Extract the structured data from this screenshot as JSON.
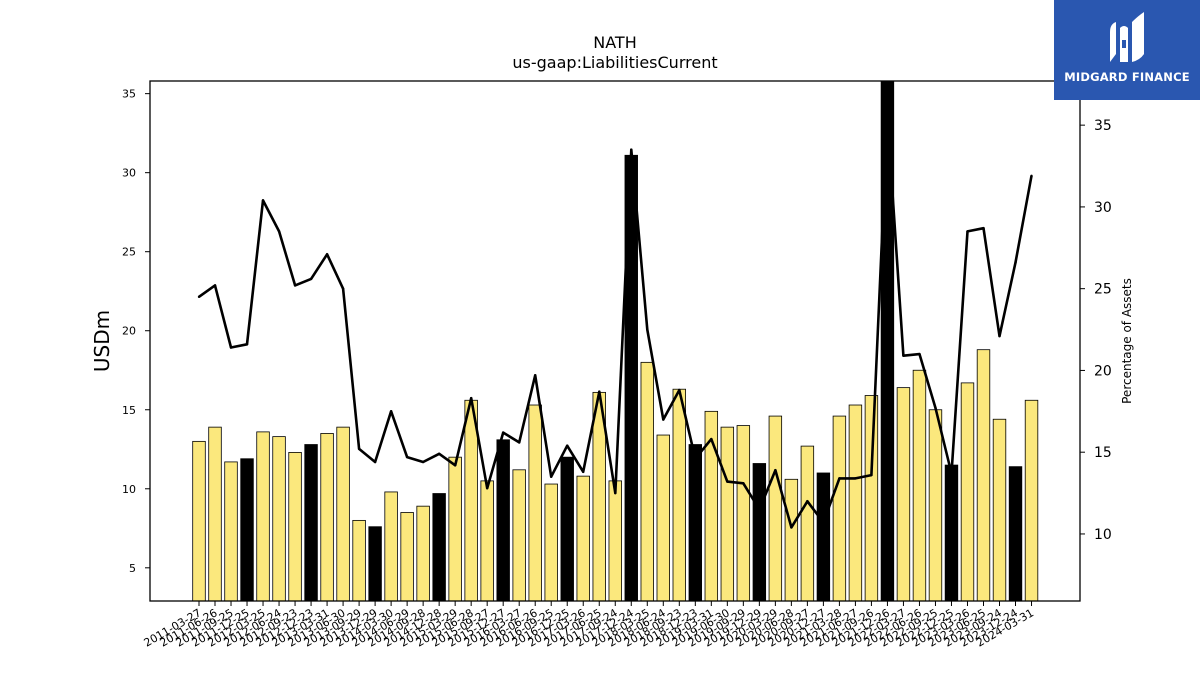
{
  "chart_data": {
    "type": "bar+line",
    "title": "NATH",
    "subtitle": "us-gaap:LiabilitiesCurrent",
    "ylabel": "USDm",
    "y2label": "Percentage of Assets",
    "ylim": [
      2.9,
      35.8
    ],
    "y2lim": [
      5.9,
      37.7
    ],
    "yticks": [
      5,
      10,
      15,
      20,
      25,
      30,
      35
    ],
    "y2ticks": [
      10,
      15,
      20,
      25,
      30,
      35
    ],
    "colors": {
      "bar_default": "#fbe87d",
      "bar_highlight": "#000000",
      "line": "#000000"
    },
    "categories": [
      "2011-03-27",
      "2011-06-26",
      "2011-09-25",
      "2011-12-25",
      "2012-03-25",
      "2012-06-24",
      "2012-09-23",
      "2012-12-23",
      "2013-03-31",
      "2013-06-30",
      "2013-09-29",
      "2013-12-29",
      "2014-03-30",
      "2014-06-29",
      "2014-09-28",
      "2014-12-28",
      "2015-03-29",
      "2015-06-28",
      "2015-09-27",
      "2015-12-27",
      "2016-03-27",
      "2016-06-26",
      "2016-09-25",
      "2016-12-25",
      "2017-03-26",
      "2017-06-25",
      "2017-09-24",
      "2017-12-24",
      "2018-03-25",
      "2018-06-24",
      "2018-09-23",
      "2018-12-23",
      "2019-03-31",
      "2019-06-30",
      "2019-09-29",
      "2019-12-29",
      "2020-03-29",
      "2020-06-28",
      "2020-09-27",
      "2020-12-27",
      "2021-03-28",
      "2021-06-27",
      "2021-09-26",
      "2021-12-26",
      "2022-03-27",
      "2022-06-26",
      "2022-09-25",
      "2022-12-25",
      "2023-03-26",
      "2023-06-25",
      "2023-09-24",
      "2023-12-24",
      "2024-03-31"
    ],
    "series": [
      {
        "type": "bar",
        "axis": "left",
        "values": [
          13.0,
          13.9,
          11.7,
          11.9,
          13.6,
          13.3,
          12.3,
          12.8,
          13.5,
          13.9,
          8.0,
          7.6,
          9.8,
          8.5,
          8.9,
          9.7,
          12.0,
          15.6,
          10.5,
          13.1,
          11.2,
          15.3,
          10.3,
          12.0,
          10.8,
          16.1,
          10.5,
          31.1,
          18.0,
          13.4,
          16.3,
          12.8,
          14.9,
          13.9,
          14.0,
          11.6,
          14.6,
          10.6,
          12.7,
          11.0,
          14.6,
          15.3,
          15.9,
          35.8,
          16.4,
          17.5,
          15.0,
          11.5,
          16.7,
          18.8,
          14.4,
          11.4,
          15.6
        ],
        "highlight": [
          false,
          false,
          false,
          true,
          false,
          false,
          false,
          true,
          false,
          false,
          false,
          true,
          false,
          false,
          false,
          true,
          false,
          false,
          false,
          true,
          false,
          false,
          false,
          true,
          false,
          false,
          false,
          true,
          false,
          false,
          false,
          true,
          false,
          false,
          false,
          true,
          false,
          false,
          false,
          true,
          false,
          false,
          false,
          true,
          false,
          false,
          false,
          true,
          false,
          false,
          false,
          true,
          false
        ]
      },
      {
        "type": "line",
        "axis": "right",
        "values": [
          24.5,
          25.2,
          21.4,
          21.6,
          30.4,
          28.5,
          25.2,
          25.6,
          27.1,
          25.0,
          15.2,
          14.4,
          17.5,
          14.7,
          14.4,
          14.9,
          14.2,
          18.3,
          12.8,
          16.2,
          15.6,
          19.7,
          13.5,
          15.4,
          13.8,
          18.7,
          12.5,
          33.5,
          22.5,
          17.0,
          18.8,
          14.6,
          15.8,
          13.2,
          13.1,
          11.5,
          13.9,
          10.4,
          12.0,
          10.7,
          13.4,
          13.4,
          13.6,
          35.5,
          20.9,
          21.0,
          17.7,
          13.7,
          28.5,
          28.7,
          22.1,
          26.6,
          31.9
        ]
      }
    ]
  },
  "brand": {
    "name": "MIDGARD FINANCE",
    "logo_icon": "midgard-mark-icon"
  }
}
